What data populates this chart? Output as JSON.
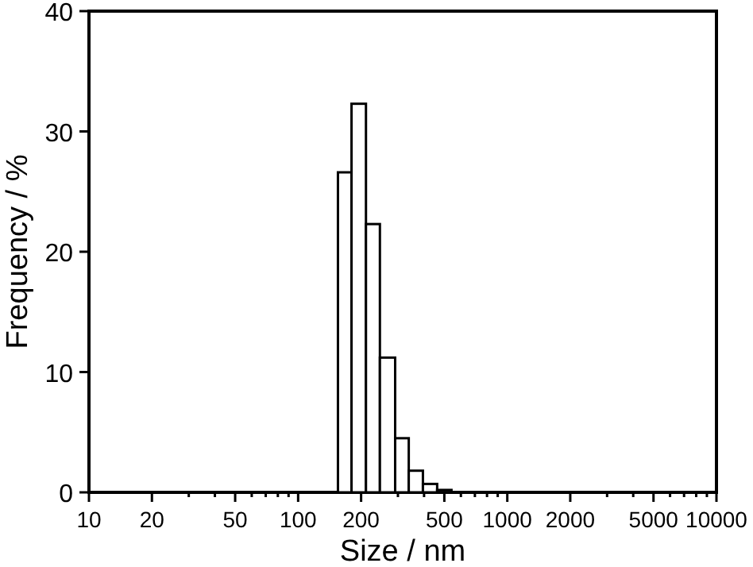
{
  "chart_data": {
    "type": "histogram",
    "xlabel": "Size  /  nm",
    "ylabel": "Frequency  /  %",
    "log": "x",
    "bins": [
      155,
      180,
      211,
      246,
      291,
      338,
      395,
      462,
      541
    ],
    "values": [
      26.6,
      32.3,
      22.3,
      11.2,
      4.5,
      1.8,
      0.7,
      0.2
    ],
    "color": "#ffffff",
    "xlim": [
      10,
      10000
    ],
    "ylim": [
      0,
      40
    ],
    "xticks": [
      10,
      20,
      {
        "value": 30,
        "label": null
      },
      {
        "value": 40,
        "label": null
      },
      50,
      {
        "value": 60,
        "label": null
      },
      {
        "value": 70,
        "label": null
      },
      {
        "value": 80,
        "label": null
      },
      {
        "value": 90,
        "label": null
      },
      100,
      200,
      {
        "value": 300,
        "label": null
      },
      {
        "value": 400,
        "label": null
      },
      500,
      {
        "value": 600,
        "label": null
      },
      {
        "value": 700,
        "label": null
      },
      {
        "value": 800,
        "label": null
      },
      {
        "value": 900,
        "label": null
      },
      1000,
      2000,
      {
        "value": 3000,
        "label": null
      },
      {
        "value": 4000,
        "label": null
      },
      5000,
      {
        "value": 6000,
        "label": null
      },
      {
        "value": 7000,
        "label": null
      },
      {
        "value": 8000,
        "label": null
      },
      {
        "value": 9000,
        "label": null
      },
      10000
    ],
    "yticks": [
      0,
      10,
      20,
      30,
      40
    ]
  }
}
